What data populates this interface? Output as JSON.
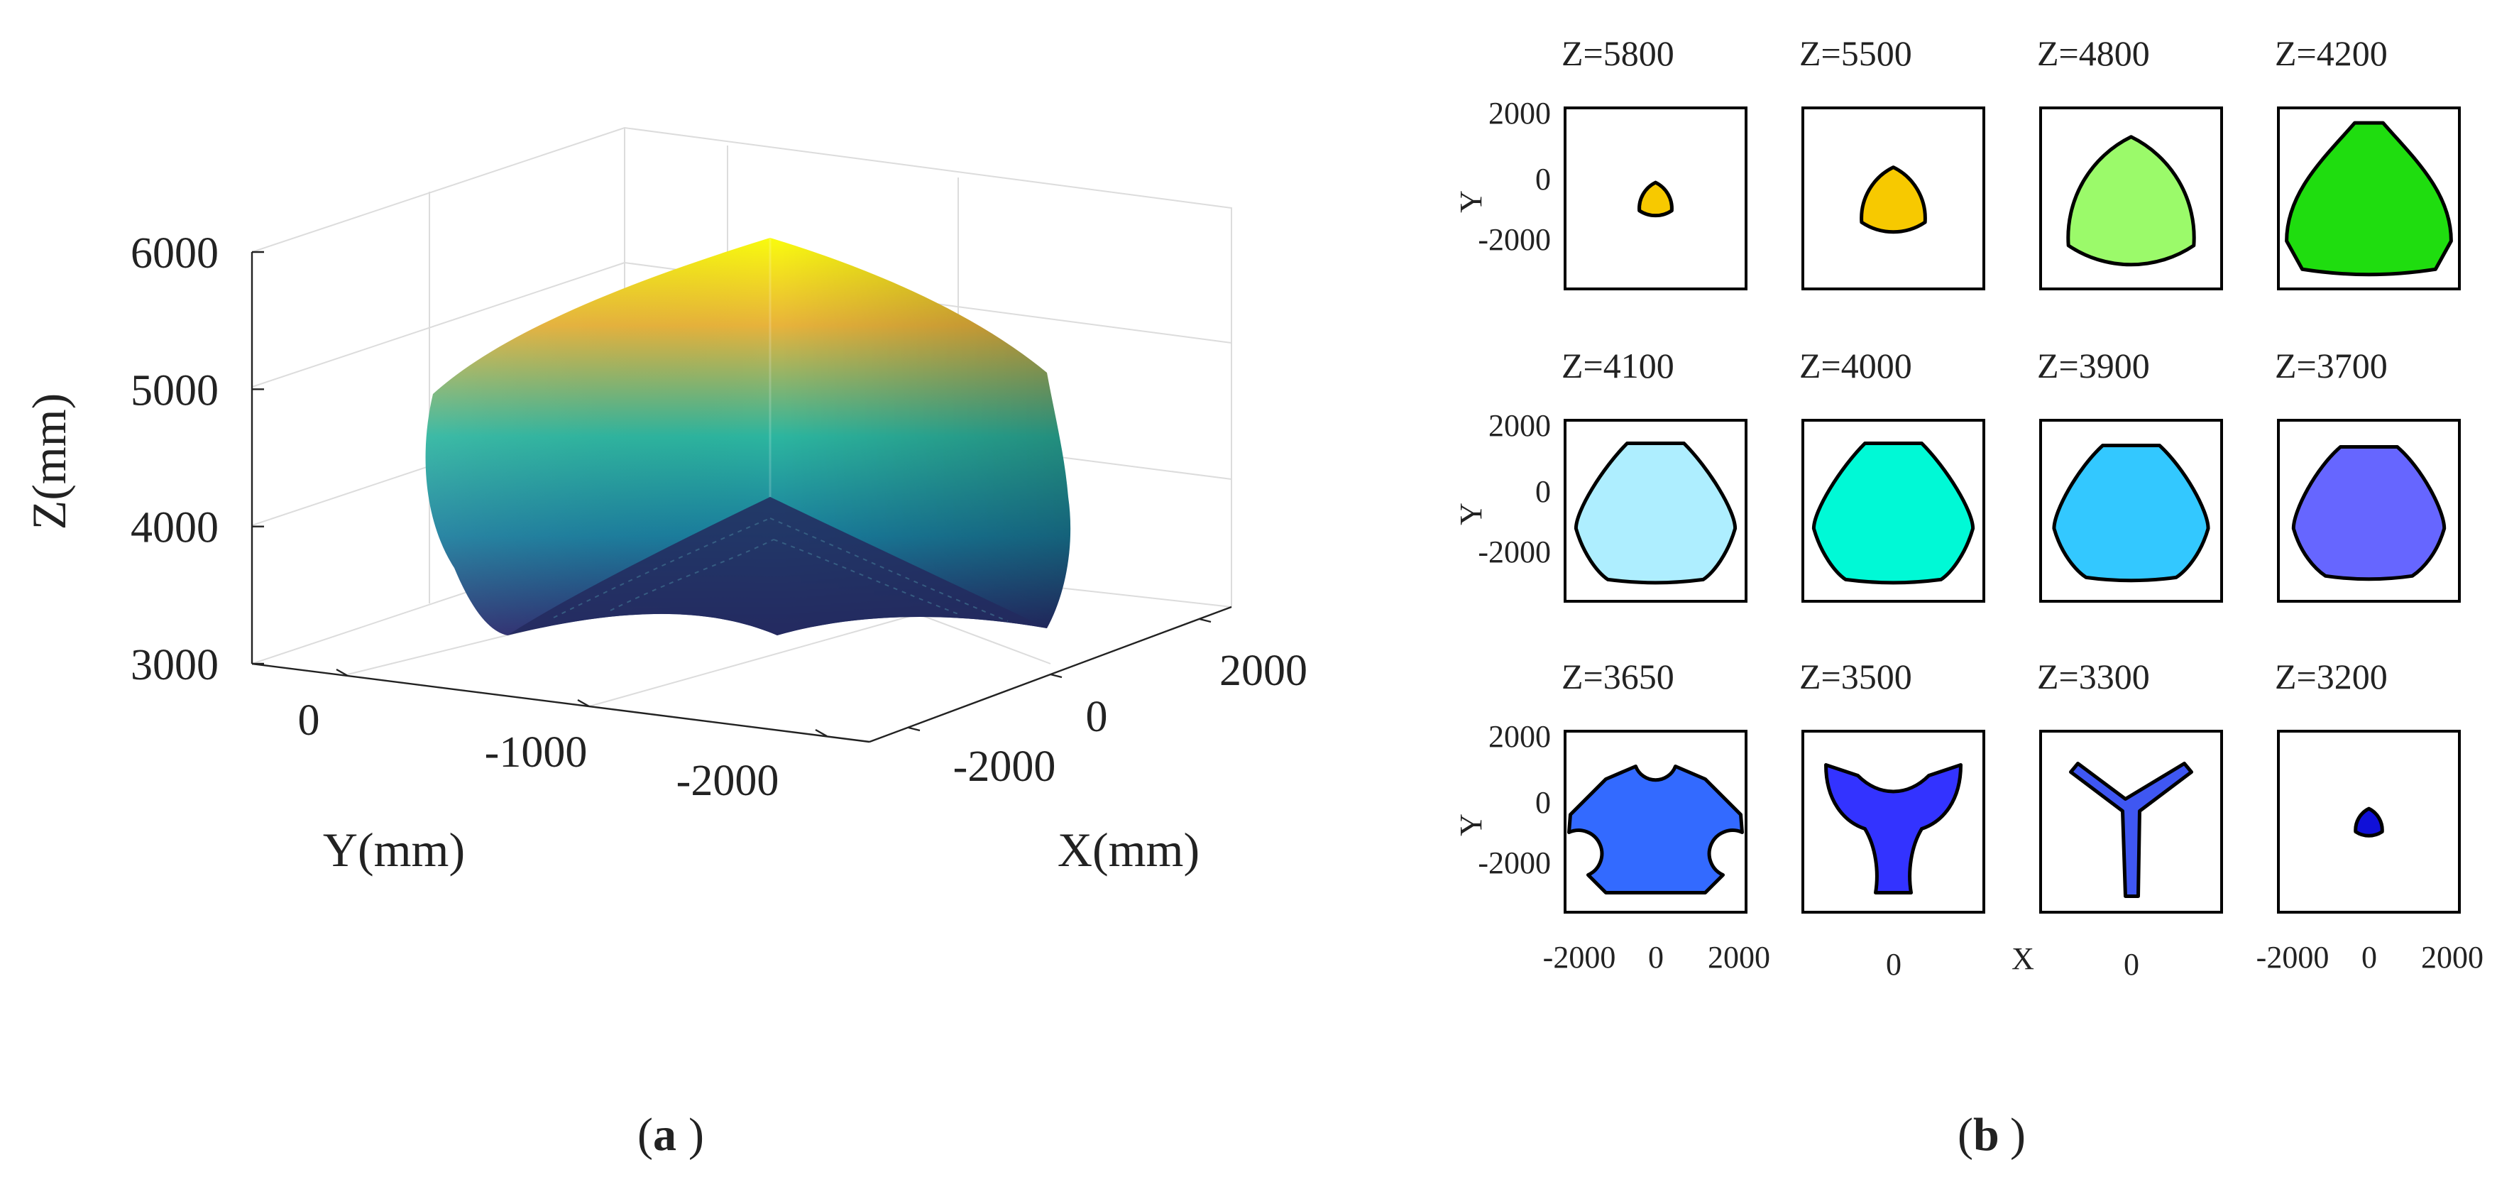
{
  "panels": {
    "a": "a",
    "b": "b"
  },
  "chart_data": [
    {
      "panel": "a",
      "type": "surface3d",
      "xlabel": "X(mm)",
      "ylabel": "Y(mm)",
      "zlabel": "Z(mm)",
      "zlim": [
        3000,
        6000
      ],
      "z_ticks": [
        "3000",
        "4000",
        "5000",
        "6000"
      ],
      "y_ticks": [
        "0",
        "-1000",
        "-2000"
      ],
      "x_ticks": [
        "-2000",
        "0",
        "2000"
      ],
      "grid": true,
      "colormap": "parula",
      "colors": {
        "top": "#f9fb0e",
        "upper": "#e8b33b",
        "middle": "#2cb59f",
        "lower": "#1a7d9d",
        "bottom": "#2a2a6e"
      }
    },
    {
      "panel": "b",
      "type": "cross_sections",
      "xlabel": "X",
      "ylabel": "Y",
      "y_ticks": [
        "2000",
        "0",
        "-2000"
      ],
      "x_ticks_full": [
        "-2000",
        "0",
        "2000"
      ],
      "x_ticks_center": [
        "0"
      ],
      "range": [
        -2500,
        2500
      ],
      "slices": [
        {
          "label": "Z=5800",
          "z": 5800,
          "shape": "tri",
          "size": 0.22,
          "color": "#f7c900"
        },
        {
          "label": "Z=5500",
          "z": 5500,
          "shape": "tri",
          "size": 0.43,
          "color": "#f7c900"
        },
        {
          "label": "Z=4800",
          "z": 4800,
          "shape": "tri",
          "size": 0.85,
          "color": "#9bfa6a"
        },
        {
          "label": "Z=4200",
          "z": 4200,
          "shape": "trunc",
          "size": 0.95,
          "color": "#1fdd0f"
        },
        {
          "label": "Z=4100",
          "z": 4100,
          "shape": "hex",
          "size": 0.95,
          "color": "#aeeeff"
        },
        {
          "label": "Z=4000",
          "z": 4000,
          "shape": "hex",
          "size": 0.95,
          "color": "#00f9d6"
        },
        {
          "label": "Z=3900",
          "z": 3900,
          "shape": "hex",
          "size": 0.92,
          "color": "#33c8ff"
        },
        {
          "label": "Z=3700",
          "z": 3700,
          "shape": "hex",
          "size": 0.9,
          "color": "#6666ff"
        },
        {
          "label": "Z=3650",
          "z": 3650,
          "shape": "notched",
          "size": 0.95,
          "color": "#336aff"
        },
        {
          "label": "Z=3500",
          "z": 3500,
          "shape": "tripod",
          "size": 0.95,
          "color": "#3333ff"
        },
        {
          "label": "Z=3300",
          "z": 3300,
          "shape": "star",
          "size": 0.95,
          "color": "#3f57f2"
        },
        {
          "label": "Z=3200",
          "z": 3200,
          "shape": "tri",
          "size": 0.18,
          "color": "#1010d8"
        }
      ]
    }
  ]
}
